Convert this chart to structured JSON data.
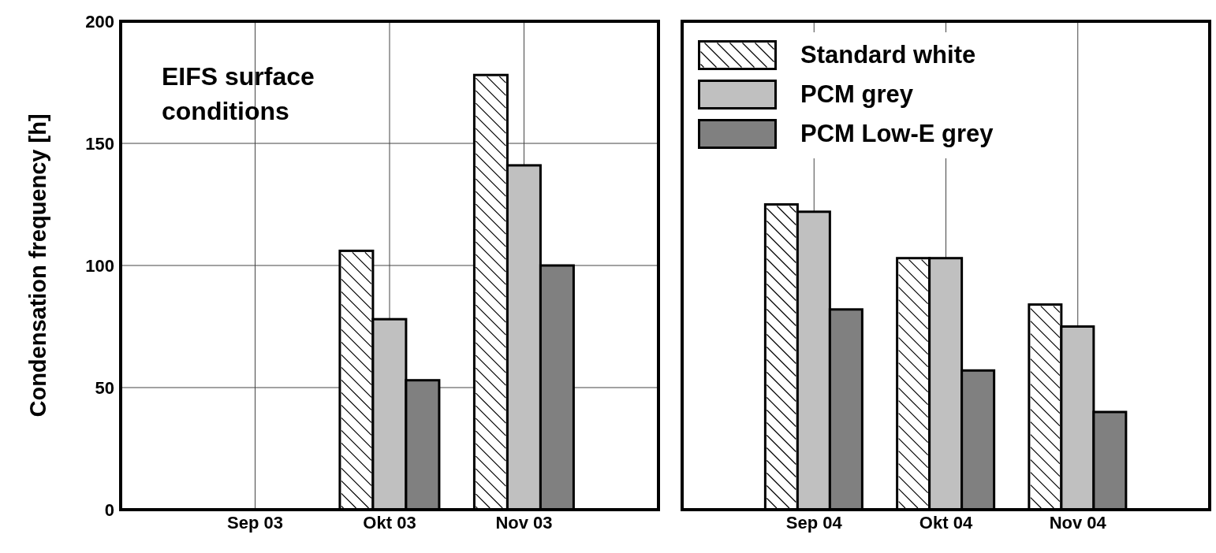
{
  "chart_data": [
    {
      "type": "bar",
      "ylabel": "Condensation frequency [h]",
      "annotations": [
        "EIFS surface conditions"
      ],
      "categories": [
        "Sep 03",
        "Okt 03",
        "Nov 03"
      ],
      "ylim": [
        0,
        200
      ],
      "yticks": [
        0,
        50,
        100,
        150,
        200
      ],
      "grid": true,
      "legend": false,
      "series": [
        {
          "color": "#ffffff",
          "values": [
            null,
            106,
            178
          ]
        },
        {
          "color": "#c0c0c0",
          "values": [
            null,
            78,
            141
          ]
        },
        {
          "color": "#808080",
          "values": [
            null,
            53,
            100
          ]
        }
      ]
    },
    {
      "type": "bar",
      "categories": [
        "Sep 04",
        "Okt 04",
        "Nov 04"
      ],
      "ylim": [
        0,
        200
      ],
      "yticks": [
        0,
        50,
        100,
        150,
        200
      ],
      "grid": true,
      "legend": "top left",
      "tick_labels": "x",
      "series": [
        {
          "name": "Standard white",
          "color": "#ffffff",
          "values": [
            125,
            103,
            84
          ]
        },
        {
          "name": "PCM grey",
          "color": "#c0c0c0",
          "values": [
            122,
            103,
            75
          ]
        },
        {
          "name": "PCM Low-E grey",
          "color": "#808080",
          "values": [
            82,
            57,
            40
          ]
        }
      ]
    }
  ]
}
